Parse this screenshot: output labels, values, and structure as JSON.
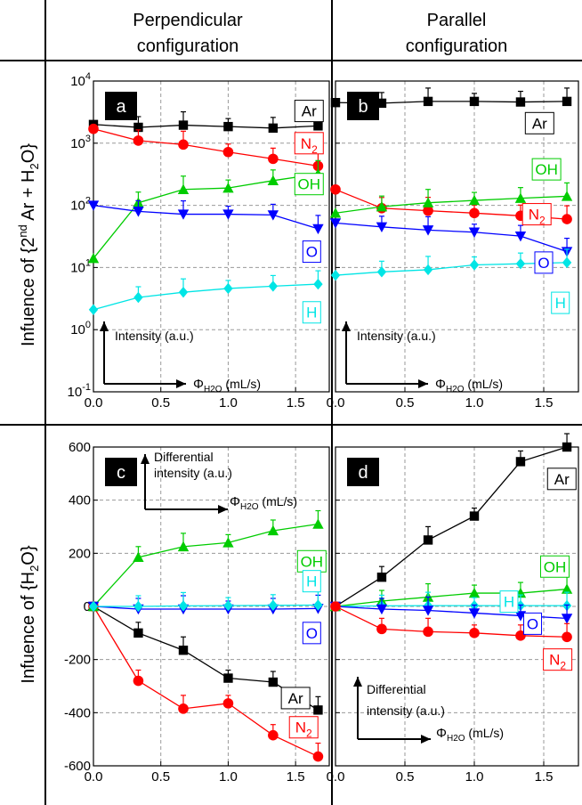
{
  "headers": {
    "col1": [
      "Perpendicular",
      "configuration"
    ],
    "col2": [
      "Parallel",
      "configuration"
    ],
    "row1": {
      "pre": "Infuence of {2",
      "sup": "nd",
      "post": " Ar + H",
      "sub": "2",
      "tail": "O}"
    },
    "row2": {
      "pre": "Infuence of {H",
      "sub": "2",
      "tail": "O}"
    }
  },
  "colors": {
    "Ar": "#000000",
    "N2": "#ff0000",
    "OH": "#00cc00",
    "O": "#0000ff",
    "H": "#00e5e5"
  },
  "x_ticks": [
    "0.0",
    "0.5",
    "1.0",
    "1.5"
  ],
  "chart_data": [
    {
      "id": "a",
      "label": "a",
      "type": "line",
      "yscale": "log",
      "xlim": [
        0,
        1.75
      ],
      "ylim": [
        0.1,
        10000
      ],
      "y_ticks": [
        {
          "v": 0.1,
          "b": "10",
          "e": "-1"
        },
        {
          "v": 1,
          "b": "10",
          "e": "0"
        },
        {
          "v": 10,
          "b": "10",
          "e": "1"
        },
        {
          "v": 100,
          "b": "10",
          "e": "2"
        },
        {
          "v": 1000,
          "b": "10",
          "e": "3"
        },
        {
          "v": 10000,
          "b": "10",
          "e": "4"
        }
      ],
      "x": [
        0,
        0.333,
        0.667,
        1.0,
        1.333,
        1.667
      ],
      "series": [
        {
          "name": "Ar",
          "marker": "square",
          "values": [
            2000,
            1800,
            1950,
            1850,
            1750,
            1900
          ]
        },
        {
          "name": "N2",
          "marker": "circle",
          "values": [
            1700,
            1100,
            950,
            720,
            560,
            430
          ]
        },
        {
          "name": "OH",
          "marker": "triangle-up",
          "values": [
            14,
            110,
            180,
            190,
            250,
            320
          ]
        },
        {
          "name": "O",
          "marker": "triangle-down",
          "values": [
            100,
            80,
            72,
            72,
            70,
            42
          ]
        },
        {
          "name": "H",
          "marker": "diamond",
          "values": [
            2.1,
            3.3,
            4.0,
            4.6,
            5.0,
            5.4
          ]
        }
      ],
      "labels": [
        {
          "series": "Ar",
          "text": "Ar",
          "x": 1.6,
          "y": 3300
        },
        {
          "series": "N2",
          "text": "N",
          "sub": "2",
          "x": 1.6,
          "y": 1000
        },
        {
          "series": "OH",
          "text": "OH",
          "x": 1.6,
          "y": 220
        },
        {
          "series": "O",
          "text": "O",
          "x": 1.62,
          "y": 18
        },
        {
          "series": "H",
          "text": "H",
          "x": 1.62,
          "y": 1.9
        }
      ],
      "annotations": {
        "intensity": "Intensity (a.u.)",
        "phi": "Φ",
        "phi_sub": "H2O",
        "phi_unit": " (mL/s)"
      }
    },
    {
      "id": "b",
      "label": "b",
      "type": "line",
      "yscale": "log",
      "xlim": [
        0,
        1.75
      ],
      "ylim": [
        0.1,
        10000
      ],
      "x": [
        0,
        0.333,
        0.667,
        1.0,
        1.333,
        1.667
      ],
      "series": [
        {
          "name": "Ar",
          "marker": "square",
          "values": [
            4500,
            4400,
            4700,
            4700,
            4600,
            4700
          ]
        },
        {
          "name": "N2",
          "marker": "circle",
          "values": [
            180,
            90,
            82,
            75,
            68,
            60
          ]
        },
        {
          "name": "OH",
          "marker": "triangle-up",
          "values": [
            75,
            95,
            110,
            120,
            130,
            140
          ]
        },
        {
          "name": "O",
          "marker": "triangle-down",
          "values": [
            52,
            45,
            40,
            37,
            32,
            18
          ]
        },
        {
          "name": "H",
          "marker": "diamond",
          "values": [
            7.5,
            8.5,
            9.2,
            11,
            11.5,
            12
          ]
        }
      ],
      "labels": [
        {
          "series": "Ar",
          "text": "Ar",
          "x": 1.47,
          "y": 2100
        },
        {
          "series": "OH",
          "text": "OH",
          "x": 1.52,
          "y": 380
        },
        {
          "series": "N2",
          "text": "N",
          "sub": "2",
          "x": 1.45,
          "y": 72
        },
        {
          "series": "O",
          "text": "O",
          "x": 1.5,
          "y": 12
        },
        {
          "series": "H",
          "text": "H",
          "x": 1.62,
          "y": 2.7
        }
      ],
      "annotations": {
        "intensity": "Intensity (a.u.)",
        "phi": "Φ",
        "phi_sub": "H2O",
        "phi_unit": " (mL/s)"
      }
    },
    {
      "id": "c",
      "label": "c",
      "type": "line",
      "yscale": "linear",
      "xlim": [
        0,
        1.75
      ],
      "ylim": [
        -600,
        600
      ],
      "y_ticks": [
        {
          "v": -600,
          "t": "-600"
        },
        {
          "v": -400,
          "t": "-400"
        },
        {
          "v": -200,
          "t": "-200"
        },
        {
          "v": 0,
          "t": "0"
        },
        {
          "v": 200,
          "t": "200"
        },
        {
          "v": 400,
          "t": "400"
        },
        {
          "v": 600,
          "t": "600"
        }
      ],
      "x": [
        0,
        0.333,
        0.667,
        1.0,
        1.333,
        1.667
      ],
      "series": [
        {
          "name": "Ar",
          "marker": "square",
          "values": [
            0,
            -100,
            -165,
            -270,
            -285,
            -390
          ]
        },
        {
          "name": "N2",
          "marker": "circle",
          "values": [
            0,
            -280,
            -385,
            -365,
            -485,
            -565
          ]
        },
        {
          "name": "OH",
          "marker": "triangle-up",
          "values": [
            0,
            185,
            225,
            240,
            285,
            310
          ]
        },
        {
          "name": "O",
          "marker": "triangle-down",
          "values": [
            0,
            -10,
            -10,
            -10,
            -10,
            -8
          ]
        },
        {
          "name": "H",
          "marker": "diamond",
          "values": [
            0,
            0,
            2,
            3,
            4,
            5
          ]
        }
      ],
      "labels": [
        {
          "series": "OH",
          "text": "OH",
          "x": 1.62,
          "y": 170
        },
        {
          "series": "H",
          "text": "H",
          "x": 1.62,
          "y": 95
        },
        {
          "series": "O",
          "text": "O",
          "x": 1.62,
          "y": -100
        },
        {
          "series": "Ar",
          "text": "Ar",
          "x": 1.5,
          "y": -345
        },
        {
          "series": "N2",
          "text": "N",
          "sub": "2",
          "x": 1.56,
          "y": -455
        }
      ],
      "annotations": {
        "diff_line1": "Differential",
        "diff_line2": "intensity (a.u.)",
        "phi": "Φ",
        "phi_sub": "H2O",
        "phi_unit": " (mL/s)"
      }
    },
    {
      "id": "d",
      "label": "d",
      "type": "line",
      "yscale": "linear",
      "xlim": [
        0,
        1.75
      ],
      "ylim": [
        -600,
        600
      ],
      "x": [
        0,
        0.333,
        0.667,
        1.0,
        1.333,
        1.667
      ],
      "series": [
        {
          "name": "Ar",
          "marker": "square",
          "values": [
            0,
            110,
            250,
            340,
            545,
            600
          ]
        },
        {
          "name": "OH",
          "marker": "triangle-up",
          "values": [
            0,
            20,
            35,
            50,
            50,
            65
          ]
        },
        {
          "name": "H",
          "marker": "diamond",
          "values": [
            0,
            2,
            3,
            3,
            3,
            3
          ]
        },
        {
          "name": "O",
          "marker": "triangle-down",
          "values": [
            0,
            -10,
            -15,
            -25,
            -35,
            -45
          ]
        },
        {
          "name": "N2",
          "marker": "circle",
          "values": [
            0,
            -85,
            -95,
            -100,
            -110,
            -115
          ]
        }
      ],
      "labels": [
        {
          "series": "Ar",
          "text": "Ar",
          "x": 1.63,
          "y": 480
        },
        {
          "series": "OH",
          "text": "OH",
          "x": 1.58,
          "y": 150
        },
        {
          "series": "H",
          "text": "H",
          "x": 1.25,
          "y": 18
        },
        {
          "series": "O",
          "text": "O",
          "x": 1.42,
          "y": -65
        },
        {
          "series": "N2",
          "text": "N",
          "sub": "2",
          "x": 1.6,
          "y": -200
        }
      ],
      "annotations": {
        "diff_line1": "Differential",
        "diff_line2": "intensity (a.u.)",
        "phi": "Φ",
        "phi_sub": "H2O",
        "phi_unit": " (mL/s)"
      }
    }
  ]
}
